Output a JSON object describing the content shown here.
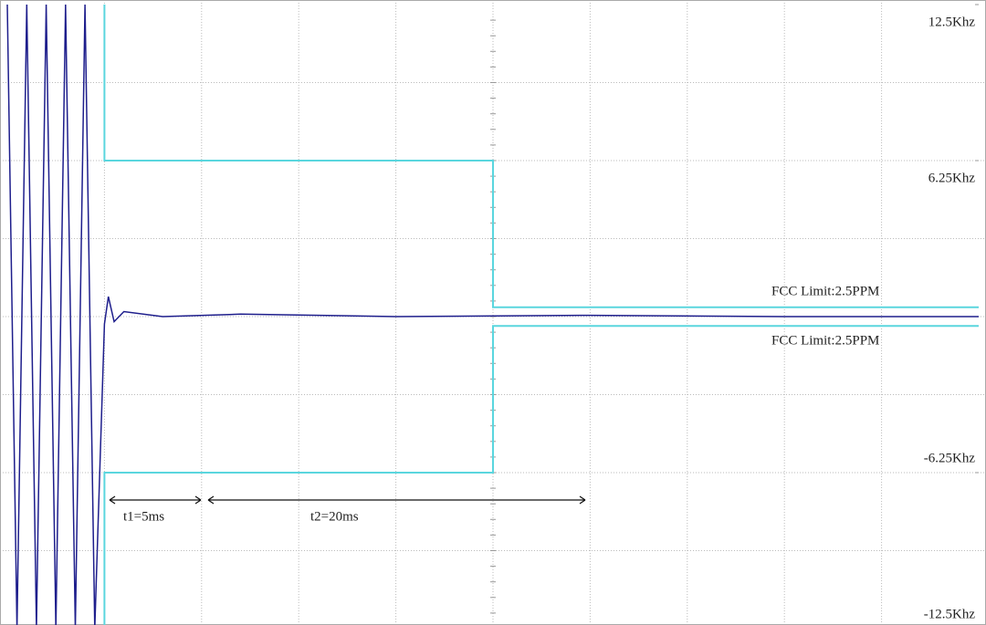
{
  "chart_data": {
    "type": "line",
    "xlim": [
      0,
      50
    ],
    "ylim": [
      -12.5,
      12.5
    ],
    "yticks": [
      {
        "value": 12.5,
        "label": "12.5Khz"
      },
      {
        "value": 6.25,
        "label": "6.25Khz"
      },
      {
        "value": -6.25,
        "label": "-6.25Khz"
      },
      {
        "value": -12.5,
        "label": "-12.5Khz"
      }
    ],
    "series": [
      {
        "color": "#1e1e8c",
        "x": [
          0,
          0.5,
          1,
          1.5,
          2,
          2.5,
          3,
          3.5,
          4,
          4.5,
          5,
          5.2,
          5.5,
          6,
          8,
          12,
          20,
          30,
          40,
          50
        ],
        "values": [
          12.5,
          -12.5,
          12.5,
          -12.5,
          12.5,
          -12.5,
          12.5,
          -12.5,
          12.5,
          -12.5,
          -0.3,
          0.8,
          -0.2,
          0.2,
          0,
          0.1,
          0,
          0.05,
          0,
          0
        ]
      },
      {
        "color": "#5ad6de",
        "x": [
          5,
          5,
          25,
          25,
          50
        ],
        "values": [
          12.5,
          6.25,
          6.25,
          0.375,
          0.375
        ]
      },
      {
        "color": "#5ad6de",
        "x": [
          5,
          5,
          25,
          25,
          50
        ],
        "values": [
          -12.5,
          -6.25,
          -6.25,
          -0.375,
          -0.375
        ]
      }
    ],
    "annotations": [
      "FCC Limit:2.5PPM",
      "FCC Limit:2.5PPM",
      "t1=5ms",
      "t2=20ms"
    ]
  }
}
